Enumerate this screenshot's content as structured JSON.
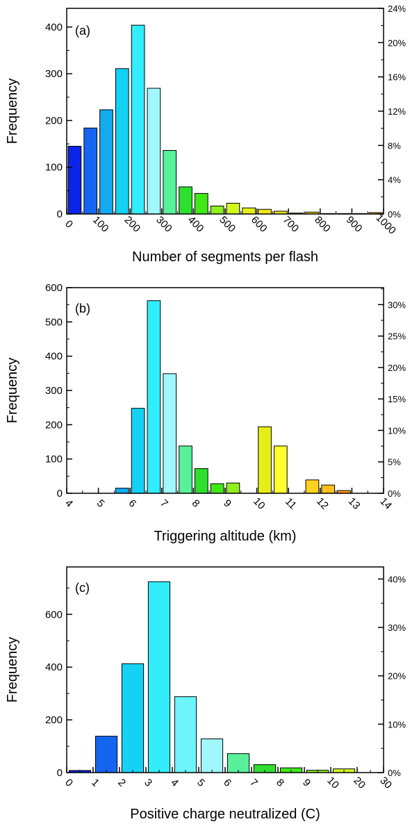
{
  "chart_data": [
    {
      "type": "bar",
      "panel_label": "(a)",
      "xlabel": "Number of segments per flash",
      "ylabel": "Frequency",
      "x_tick_labels": [
        "0",
        "100",
        "200",
        "300",
        "400",
        "500",
        "600",
        "700",
        "800",
        "900",
        "1000"
      ],
      "y_ticks": [
        0,
        100,
        200,
        300,
        400
      ],
      "ylim": [
        0,
        440
      ],
      "right_axis_ticks": [
        "0%",
        "4%",
        "8%",
        "12%",
        "16%",
        "20%",
        "24%"
      ],
      "right_axis_max_percent": 24,
      "bin_count": 20,
      "values": [
        145,
        184,
        223,
        311,
        404,
        269,
        136,
        58,
        44,
        17,
        23,
        13,
        10,
        6,
        2,
        4,
        1,
        1,
        1,
        3
      ],
      "colors": [
        "#0c24e8",
        "#1466f0",
        "#14aaf0",
        "#14d2f4",
        "#33ecfc",
        "#a0f8fc",
        "#58f09a",
        "#2ee02e",
        "#40e818",
        "#8ef01c",
        "#d2f820",
        "#e6ee18",
        "#f0e418",
        "#f0e018",
        "#eedc1a",
        "#f0d018",
        "#f0c81c",
        "#f0c01c",
        "#f0b81c",
        "#f0b018"
      ]
    },
    {
      "type": "bar",
      "panel_label": "(b)",
      "xlabel": "Triggering altitude (km)",
      "ylabel": "Frequency",
      "x_tick_labels": [
        "4",
        "5",
        "6",
        "7",
        "8",
        "9",
        "10",
        "11",
        "12",
        "13",
        "14"
      ],
      "y_ticks": [
        0,
        100,
        200,
        300,
        400,
        500,
        600
      ],
      "ylim": [
        0,
        600
      ],
      "right_axis_ticks": [
        "0%",
        "5%",
        "10%",
        "15%",
        "20%",
        "25%",
        "30%"
      ],
      "right_axis_max_percent": 32.7,
      "bin_count": 20,
      "values": [
        0,
        0,
        0,
        15,
        248,
        562,
        349,
        138,
        72,
        28,
        30,
        0,
        194,
        138,
        0,
        39,
        24,
        8,
        0,
        0
      ],
      "colors": [
        "#0c24e8",
        "#1466f0",
        "#14aaf0",
        "#14aaf0",
        "#14d2f4",
        "#33ecfc",
        "#a0f8fc",
        "#58f09a",
        "#2ee02e",
        "#40e818",
        "#8ef01c",
        "#d2f820",
        "#e6ee18",
        "#ffff30",
        "#f0e418",
        "#ffd21c",
        "#ffc31c",
        "#ff9a1c",
        "#f0b81c",
        "#f0b018"
      ]
    },
    {
      "type": "bar",
      "panel_label": "(c)",
      "xlabel": "Positive charge neutralized (C)",
      "ylabel": "Frequency",
      "x_tick_labels": [
        "0",
        "1",
        "2",
        "3",
        "4",
        "5",
        "6",
        "7",
        "8",
        "9",
        "10",
        "20",
        "30"
      ],
      "y_ticks": [
        0,
        200,
        400,
        600
      ],
      "ylim": [
        0,
        780
      ],
      "right_axis_ticks": [
        "0%",
        "10%",
        "20%",
        "30%",
        "40%"
      ],
      "right_axis_max_percent": 42.5,
      "bin_count": 12,
      "values": [
        8,
        138,
        413,
        724,
        288,
        128,
        72,
        30,
        18,
        9,
        14,
        0
      ],
      "colors": [
        "#0c24e8",
        "#1466f0",
        "#14d2f4",
        "#33ecfc",
        "#6ef4fc",
        "#a0f8fc",
        "#58f09a",
        "#2ee02e",
        "#40e818",
        "#8ef01c",
        "#d2f820",
        "#e6ee18"
      ]
    }
  ]
}
